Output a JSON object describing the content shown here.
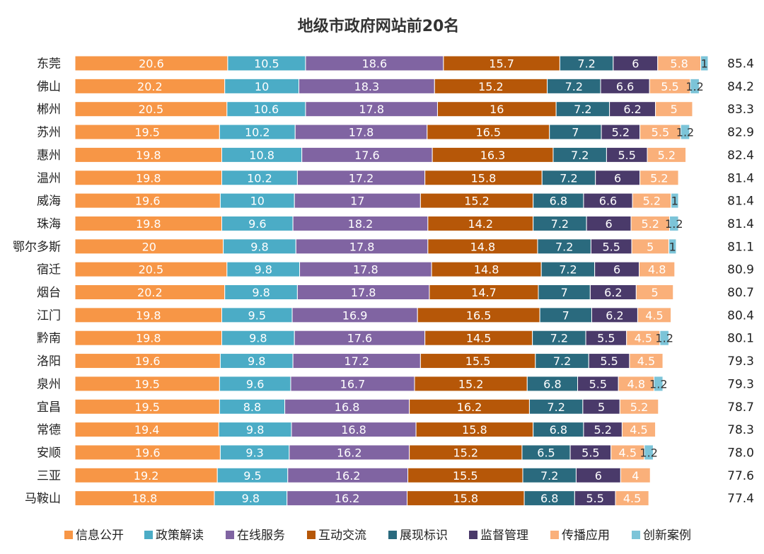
{
  "chart_data": {
    "type": "bar",
    "orientation": "horizontal",
    "stacked": true,
    "title": "地级市政府网站前20名",
    "xlabel": "",
    "ylabel": "",
    "grid": false,
    "legend_position": "bottom",
    "categories": [
      "东莞",
      "佛山",
      "郴州",
      "苏州",
      "惠州",
      "温州",
      "威海",
      "珠海",
      "鄂尔多斯",
      "宿迁",
      "烟台",
      "江门",
      "黔南",
      "洛阳",
      "泉州",
      "宜昌",
      "常德",
      "安顺",
      "三亚",
      "马鞍山"
    ],
    "totals": [
      "85.4",
      "84.2",
      "83.3",
      "82.9",
      "82.4",
      "81.4",
      "81.4",
      "81.4",
      "81.1",
      "80.9",
      "80.7",
      "80.4",
      "80.1",
      "79.3",
      "79.3",
      "78.7",
      "78.3",
      "78.0",
      "77.6",
      "77.4"
    ],
    "series": [
      {
        "name": "信息公开",
        "color": "#F79646",
        "label_color": "#ffffff",
        "values": [
          20.6,
          20.2,
          20.5,
          19.5,
          19.8,
          19.8,
          19.6,
          19.8,
          20,
          20.5,
          20.2,
          19.8,
          19.8,
          19.6,
          19.5,
          19.5,
          19.4,
          19.6,
          19.2,
          18.8
        ]
      },
      {
        "name": "政策解读",
        "color": "#4BACC6",
        "label_color": "#ffffff",
        "values": [
          10.5,
          10,
          10.6,
          10.2,
          10.8,
          10.2,
          10,
          9.6,
          9.8,
          9.8,
          9.8,
          9.5,
          9.8,
          9.8,
          9.6,
          8.8,
          9.8,
          9.3,
          9.5,
          9.8
        ]
      },
      {
        "name": "在线服务",
        "color": "#8064A2",
        "label_color": "#ffffff",
        "values": [
          18.6,
          18.3,
          17.8,
          17.8,
          17.6,
          17.2,
          17,
          18.2,
          17.8,
          17.8,
          17.8,
          16.9,
          17.6,
          17.2,
          16.7,
          16.8,
          16.8,
          16.2,
          16.2,
          16.2
        ]
      },
      {
        "name": "互动交流",
        "color": "#B65708",
        "label_color": "#ffffff",
        "values": [
          15.7,
          15.2,
          16,
          16.5,
          16.3,
          15.8,
          15.2,
          14.2,
          14.8,
          14.8,
          14.7,
          16.5,
          14.5,
          15.5,
          15.2,
          16.2,
          15.8,
          15.2,
          15.5,
          15.8
        ]
      },
      {
        "name": "展现标识",
        "color": "#2A6A7E",
        "label_color": "#ffffff",
        "values": [
          7.2,
          7.2,
          7.2,
          7,
          7.2,
          7.2,
          6.8,
          7.2,
          7.2,
          7.2,
          7,
          7,
          7.2,
          7.2,
          6.8,
          7.2,
          6.8,
          6.5,
          7.2,
          6.8
        ]
      },
      {
        "name": "监督管理",
        "color": "#4A3A6A",
        "label_color": "#ffffff",
        "values": [
          6,
          6.6,
          6.2,
          5.2,
          5.5,
          6,
          6.6,
          6,
          5.5,
          6,
          6.2,
          6.2,
          5.5,
          5.5,
          5.5,
          5,
          5.2,
          5.5,
          6,
          5.5
        ]
      },
      {
        "name": "传播应用",
        "color": "#FAB07A",
        "label_color": "#ffffff",
        "values": [
          5.8,
          5.5,
          5,
          5.5,
          5.2,
          5.2,
          5.2,
          5.2,
          5,
          4.8,
          5,
          4.5,
          4.5,
          4.5,
          4.8,
          5.2,
          4.5,
          4.5,
          4,
          4.5
        ]
      },
      {
        "name": "创新案例",
        "color": "#7CC4D8",
        "label_color": "#333333",
        "values": [
          1,
          1.2,
          null,
          1.2,
          null,
          null,
          1,
          1.2,
          1,
          null,
          null,
          null,
          1.2,
          null,
          1.2,
          null,
          null,
          1.2,
          null,
          null
        ]
      }
    ]
  }
}
